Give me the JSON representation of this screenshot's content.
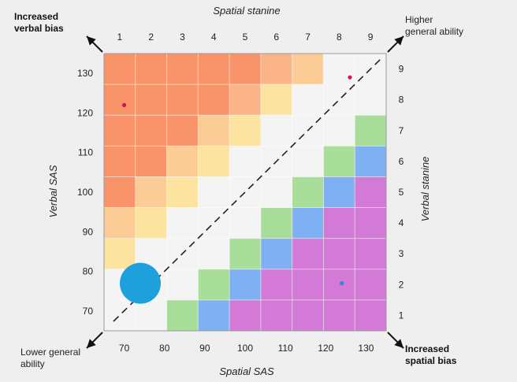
{
  "chart_data": {
    "type": "heatmap",
    "x_axis": {
      "bottom_label": "Spatial SAS",
      "bottom_ticks": [
        70,
        80,
        90,
        100,
        110,
        120,
        130
      ],
      "top_label": "Spatial stanine",
      "top_ticks": [
        1,
        2,
        3,
        4,
        5,
        6,
        7,
        8,
        9
      ],
      "range": [
        65,
        135
      ]
    },
    "y_axis": {
      "left_label": "Verbal SAS",
      "left_ticks": [
        70,
        80,
        90,
        100,
        110,
        120,
        130
      ],
      "right_label": "Verbal stanine",
      "right_ticks": [
        1,
        2,
        3,
        4,
        5,
        6,
        7,
        8,
        9
      ],
      "range": [
        65,
        135
      ]
    },
    "corner_labels": {
      "top_left": "Increased\nverbal bias",
      "top_right": "Higher\ngeneral ability",
      "bottom_left": "Lower general\nability",
      "bottom_right": "Increased\nspatial bias"
    },
    "color_key": {
      "R": "#f9946a",
      "O": "#fbb488",
      "P": "#fccc96",
      "Y": "#fde3a0",
      "W": "#f4f4f4",
      "G": "#a9dd9a",
      "B": "#7fb0f3",
      "M": "#d27ad6"
    },
    "grid": [
      [
        "R",
        "R",
        "R",
        "R",
        "R",
        "O",
        "P",
        "W",
        "W"
      ],
      [
        "R",
        "R",
        "R",
        "R",
        "O",
        "Y",
        "W",
        "W",
        "W"
      ],
      [
        "R",
        "R",
        "R",
        "P",
        "Y",
        "W",
        "W",
        "W",
        "G"
      ],
      [
        "R",
        "R",
        "P",
        "Y",
        "W",
        "W",
        "W",
        "G",
        "B"
      ],
      [
        "R",
        "P",
        "Y",
        "W",
        "W",
        "W",
        "G",
        "B",
        "M"
      ],
      [
        "P",
        "Y",
        "W",
        "W",
        "W",
        "G",
        "B",
        "M",
        "M"
      ],
      [
        "Y",
        "W",
        "W",
        "W",
        "G",
        "B",
        "M",
        "M",
        "M"
      ],
      [
        "W",
        "W",
        "W",
        "G",
        "B",
        "M",
        "M",
        "M",
        "M"
      ],
      [
        "W",
        "W",
        "G",
        "B",
        "M",
        "M",
        "M",
        "M",
        "M"
      ]
    ],
    "diagonal_reference": "dashed line from bottom-left to top-right",
    "points": [
      {
        "x": 70,
        "y": 122,
        "size": "small",
        "color": "#d0145a"
      },
      {
        "x": 126,
        "y": 129,
        "size": "small",
        "color": "#d0145a"
      },
      {
        "x": 124,
        "y": 77,
        "size": "small",
        "color": "#1f8fd6"
      },
      {
        "x": 74,
        "y": 77,
        "size": "large",
        "color": "#1ea0dc"
      }
    ]
  }
}
